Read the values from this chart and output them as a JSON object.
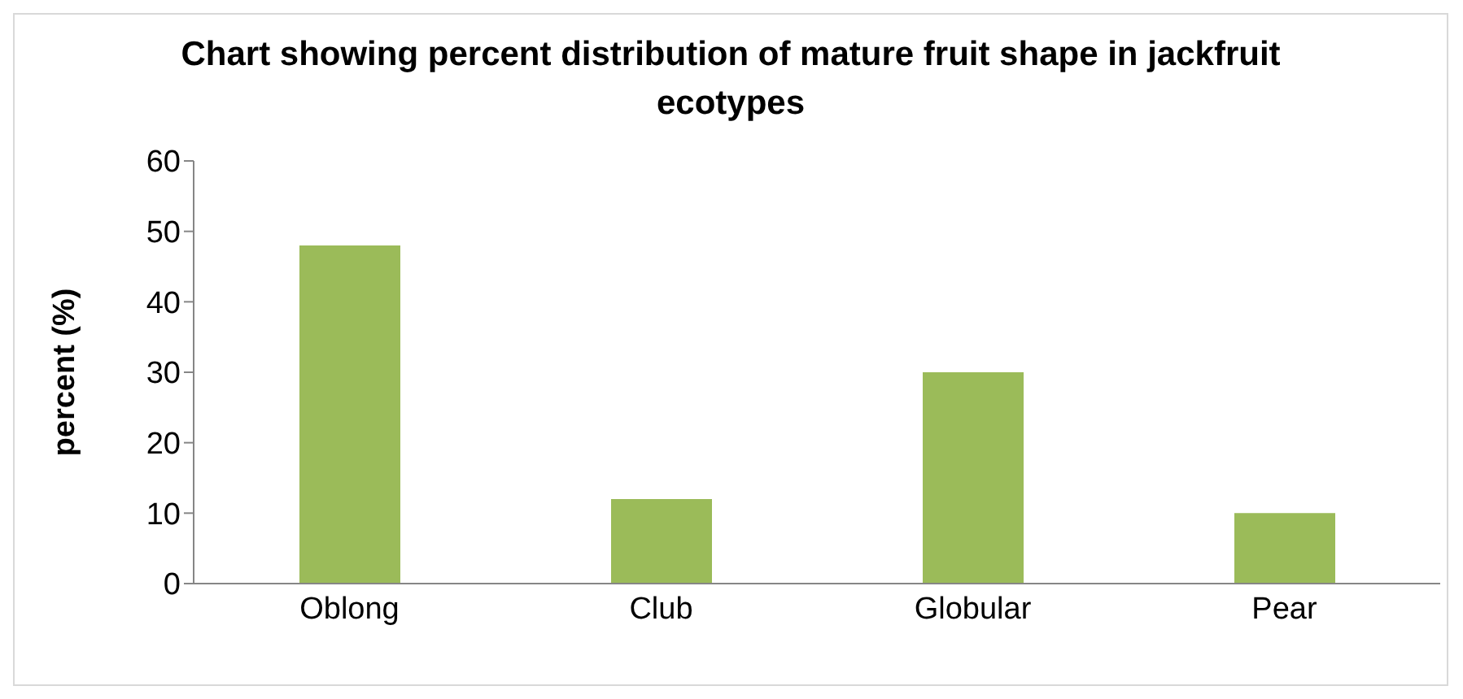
{
  "chart_data": {
    "type": "bar",
    "title": "Chart showing percent distribution of mature fruit shape in jackfruit ecotypes",
    "ylabel": "percent (%)",
    "categories": [
      "Oblong",
      "Club",
      "Globular",
      "Pear"
    ],
    "values": [
      48,
      12,
      30,
      10
    ],
    "color": "#9bbb59",
    "ylim": [
      0,
      60
    ],
    "yticks": [
      0,
      10,
      20,
      30,
      40,
      50,
      60
    ],
    "grid": false
  }
}
